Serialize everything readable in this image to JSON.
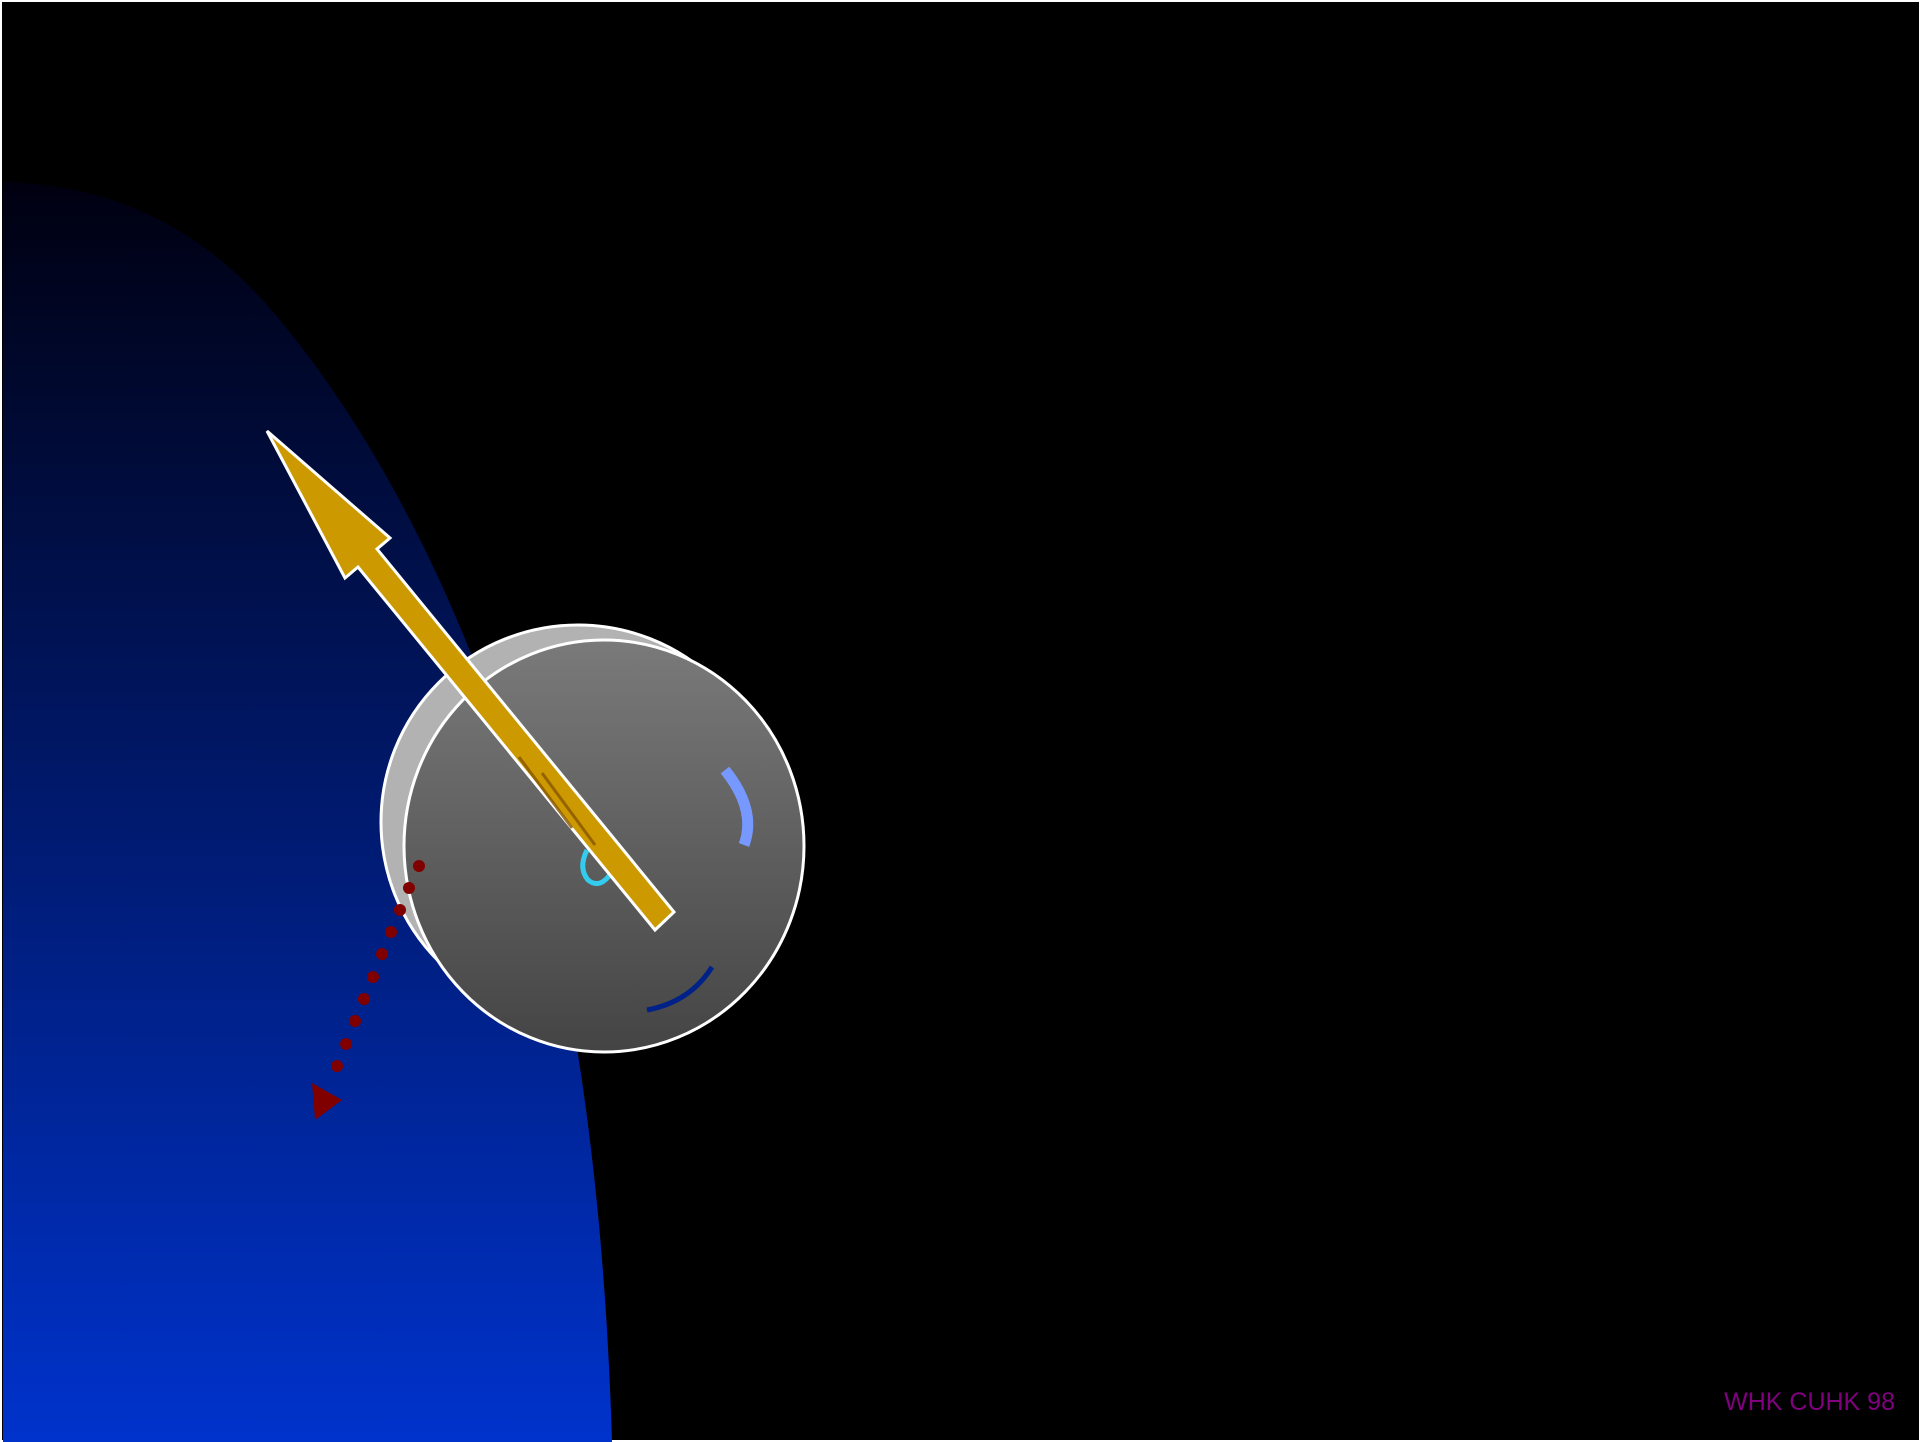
{
  "slide": {
    "credit": "WHK CUHK 98"
  },
  "colors": {
    "background": "#000000",
    "frame": "#ffffff",
    "planet_top": "#000010",
    "planet_bottom": "#0033cc",
    "body_rim": "#b2b2b2",
    "body_top": "#7a7a7a",
    "body_bottom": "#444444",
    "spin_axis_arrow": "#cc9900",
    "motion_arrow": "#800000",
    "arc_light_blue": "#7799ff",
    "arc_cyan": "#33ccee",
    "arc_dark_blue": "#002288",
    "credit": "#800080"
  },
  "icons": {
    "spin_axis": "thick-arrow-icon",
    "motion": "dotted-arrow-icon"
  }
}
